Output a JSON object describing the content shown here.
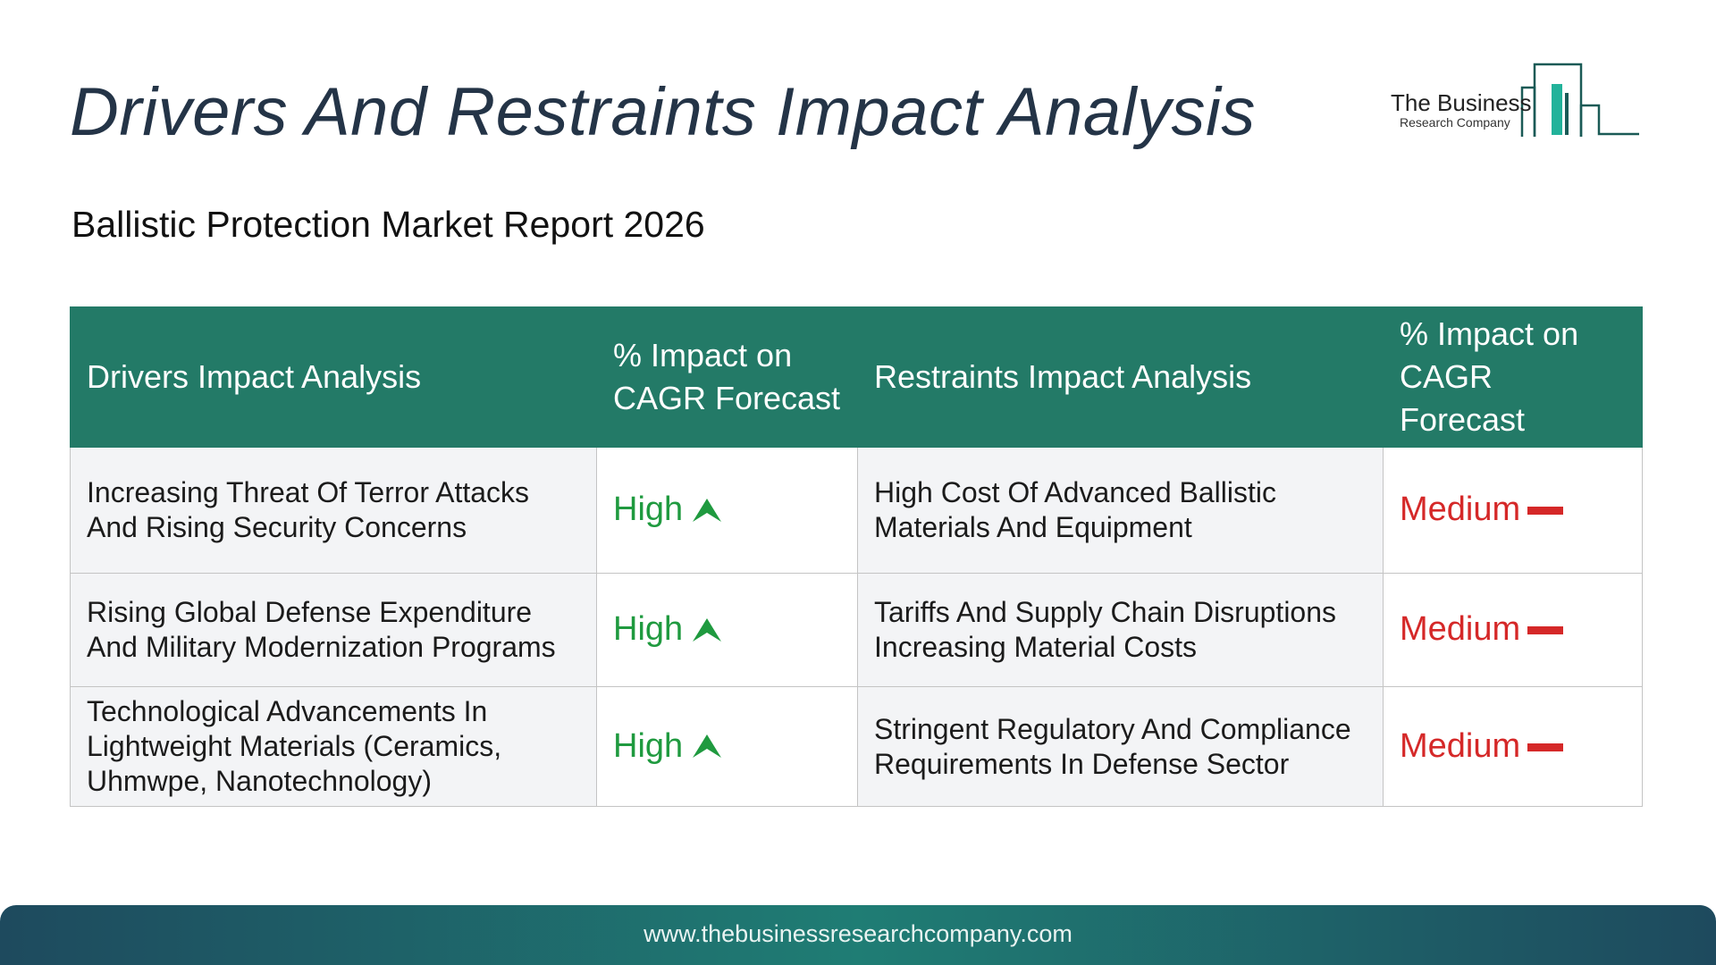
{
  "title": "Drivers And Restraints Impact Analysis",
  "subtitle": "Ballistic Protection Market Report 2026",
  "logo": {
    "main": "The Business",
    "sub": "Research Company"
  },
  "table": {
    "headers": {
      "drivers": "Drivers Impact Analysis",
      "drivers_impact": "% Impact on CAGR Forecast",
      "restraints": "Restraints Impact Analysis",
      "restraints_impact": "% Impact on CAGR Forecast"
    },
    "rows": [
      {
        "driver": "Increasing Threat Of Terror Attacks And Rising Security Concerns",
        "driver_impact": "High",
        "restraint": "High Cost Of Advanced Ballistic Materials And Equipment",
        "restraint_impact": "Medium"
      },
      {
        "driver": "Rising Global Defense Expenditure And Military Modernization Programs",
        "driver_impact": "High",
        "restraint": "Tariffs And Supply Chain Disruptions Increasing Material Costs",
        "restraint_impact": "Medium"
      },
      {
        "driver": "Technological Advancements In Lightweight Materials (Ceramics, Uhmwpe, Nanotechnology)",
        "driver_impact": "High",
        "restraint": "Stringent Regulatory And Compliance Requirements In Defense Sector",
        "restraint_impact": "Medium"
      }
    ]
  },
  "footer": {
    "url": "www.thebusinessresearchcompany.com"
  },
  "colors": {
    "header_bg": "#237a67",
    "high": "#1f9a3f",
    "medium": "#d52828",
    "title": "#243447"
  },
  "icons": {
    "high": "arrow-up-icon",
    "medium": "dash-icon"
  }
}
